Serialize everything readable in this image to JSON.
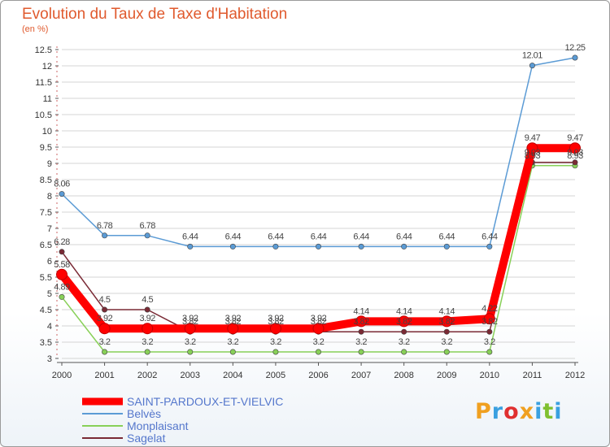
{
  "chart_data": {
    "type": "line",
    "title": "Evolution du Taux de Taxe d'Habitation",
    "subtitle": "(en %)",
    "x": [
      "2000",
      "2001",
      "2002",
      "2003",
      "2004",
      "2005",
      "2006",
      "2007",
      "2008",
      "2009",
      "2010",
      "2011",
      "2012"
    ],
    "ylim": [
      3,
      12.5
    ],
    "yticks": [
      "3",
      "3.5",
      "4",
      "4.5",
      "5",
      "5.5",
      "6",
      "6.5",
      "7",
      "7.5",
      "8",
      "8.5",
      "9",
      "9.5",
      "10",
      "10.5",
      "11",
      "11.5",
      "12",
      "12.5"
    ],
    "grid": "horizontal",
    "legend_position": "bottom-left",
    "series": [
      {
        "name": "SAINT-PARDOUX-ET-VIELVIC",
        "color": "#ff0000",
        "values": [
          5.58,
          3.92,
          3.92,
          3.92,
          3.92,
          3.92,
          3.92,
          4.14,
          4.14,
          4.14,
          4.22,
          9.47,
          9.47
        ],
        "labels": [
          "5.58",
          "3.92",
          "3.92",
          "3.92",
          "3.92",
          "3.92",
          "3.92",
          "4.14",
          "4.14",
          "4.14",
          "4.22",
          "9.47",
          "9.47"
        ]
      },
      {
        "name": "Belvès",
        "color": "#5b9bd5",
        "values": [
          8.06,
          6.78,
          6.78,
          6.44,
          6.44,
          6.44,
          6.44,
          6.44,
          6.44,
          6.44,
          6.44,
          12.01,
          12.25
        ],
        "labels": [
          "8.06",
          "6.78",
          "6.78",
          "6.44",
          "6.44",
          "6.44",
          "6.44",
          "6.44",
          "6.44",
          "6.44",
          "6.44",
          "12.01",
          "12.25"
        ]
      },
      {
        "name": "Monplaisant",
        "color": "#88d058",
        "values": [
          4.89,
          3.2,
          3.2,
          3.2,
          3.2,
          3.2,
          3.2,
          3.2,
          3.2,
          3.2,
          3.2,
          8.93,
          8.93
        ],
        "labels": [
          "4.89",
          "3.2",
          "3.2",
          "3.2",
          "3.2",
          "3.2",
          "3.2",
          "3.2",
          "3.2",
          "3.2",
          "3.2",
          "8.93",
          "8.93"
        ]
      },
      {
        "name": "Sagelat",
        "color": "#7a2a35",
        "values": [
          6.28,
          4.5,
          4.5,
          3.82,
          3.82,
          3.82,
          3.82,
          3.82,
          3.82,
          3.82,
          3.82,
          9.03,
          9.03
        ],
        "labels": [
          "6.28",
          "4.5",
          "4.5",
          "3.82",
          "3.82",
          "3.82",
          "3.82",
          "3.82",
          "3.82",
          "3.82",
          "3.82",
          "9.03",
          "9.03"
        ]
      }
    ]
  },
  "branding": {
    "logo_text": "Proxiti",
    "colors": [
      "#f0a020",
      "#3aa0e0",
      "#e03030",
      "#f0a020",
      "#3aa0e0",
      "#80c030",
      "#3aa0e0"
    ]
  }
}
